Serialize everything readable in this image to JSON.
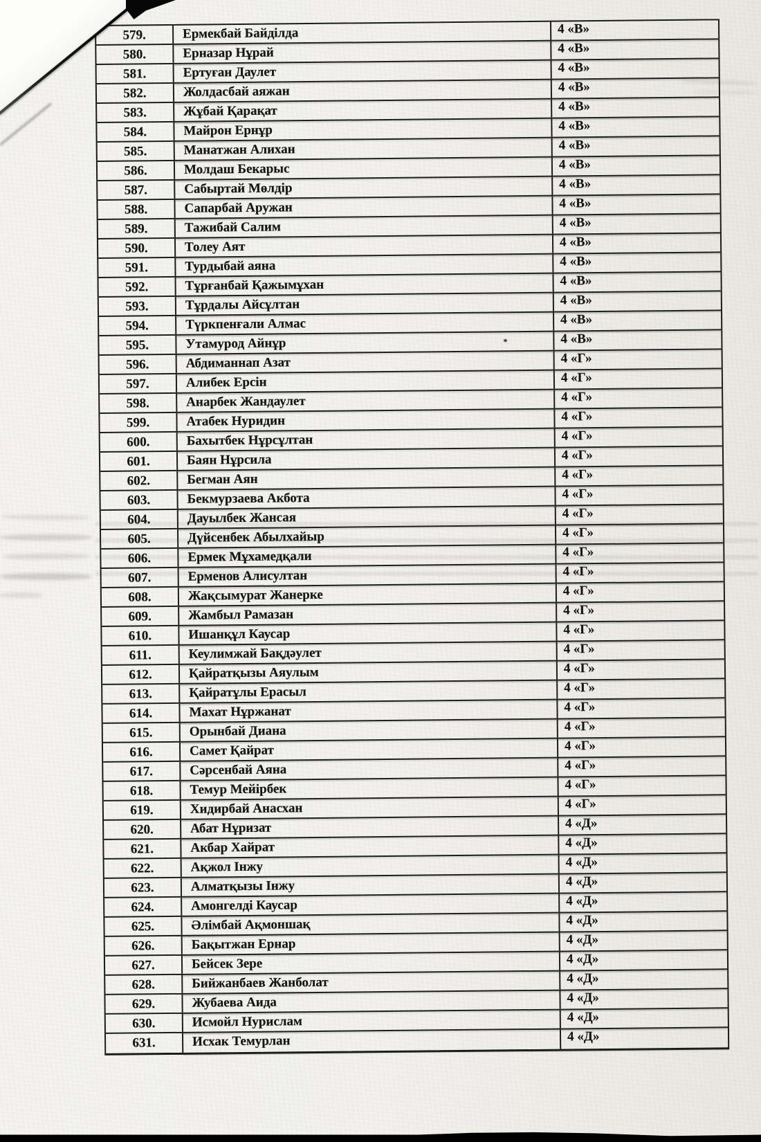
{
  "page": {
    "kind": "scanned-student-list",
    "paper_color": "#f1f0ec",
    "ink_color": "#161616"
  },
  "table": {
    "columns": [
      "number",
      "name",
      "class"
    ],
    "rows": [
      {
        "number": "579.",
        "name": "Ермекбай Байділда",
        "class": "4 «В»"
      },
      {
        "number": "580.",
        "name": "Ерназар Нұрай",
        "class": "4 «В»"
      },
      {
        "number": "581.",
        "name": "Ертуған Даулет",
        "class": "4 «В»"
      },
      {
        "number": "582.",
        "name": "Жолдасбай аяжан",
        "class": "4 «В»"
      },
      {
        "number": "583.",
        "name": "Жұбай Қарақат",
        "class": "4 «В»"
      },
      {
        "number": "584.",
        "name": "Майрон Ернұр",
        "class": "4 «В»"
      },
      {
        "number": "585.",
        "name": "Манатжан Алихан",
        "class": "4 «В»"
      },
      {
        "number": "586.",
        "name": "Молдаш Бекарыс",
        "class": "4 «В»"
      },
      {
        "number": "587.",
        "name": "Сабыртай Мөлдір",
        "class": "4 «В»"
      },
      {
        "number": "588.",
        "name": "Сапарбай Аружан",
        "class": "4 «В»"
      },
      {
        "number": "589.",
        "name": "Тажибай Салим",
        "class": "4 «В»"
      },
      {
        "number": "590.",
        "name": "Толеу Аят",
        "class": "4 «В»"
      },
      {
        "number": "591.",
        "name": "Турдыбай аяна",
        "class": "4 «В»"
      },
      {
        "number": "592.",
        "name": "Тұрғанбай Қажымұхан",
        "class": "4 «В»"
      },
      {
        "number": "593.",
        "name": "Тұрдалы Айсұлтан",
        "class": "4 «В»"
      },
      {
        "number": "594.",
        "name": "Түркпенғали Алмас",
        "class": "4 «В»"
      },
      {
        "number": "595.",
        "name": "Утамурод Айнұр",
        "class": "4 «В»"
      },
      {
        "number": "596.",
        "name": "Абдиманнап Азат",
        "class": "4 «Г»"
      },
      {
        "number": "597.",
        "name": "Алибек Ерсін",
        "class": "4 «Г»"
      },
      {
        "number": "598.",
        "name": "Анарбек Жандаулет",
        "class": "4 «Г»"
      },
      {
        "number": "599.",
        "name": "Атабек Нуридин",
        "class": "4 «Г»"
      },
      {
        "number": "600.",
        "name": "Бахытбек Нұрсұлтан",
        "class": "4 «Г»"
      },
      {
        "number": "601.",
        "name": "Баян Нұрсила",
        "class": "4 «Г»"
      },
      {
        "number": "602.",
        "name": "Бегман Аян",
        "class": "4 «Г»"
      },
      {
        "number": "603.",
        "name": "Бекмурзаева Акбота",
        "class": "4 «Г»"
      },
      {
        "number": "604.",
        "name": "Дауылбек Жансая",
        "class": "4 «Г»"
      },
      {
        "number": "605.",
        "name": "Дүйсенбек Абылхайыр",
        "class": "4 «Г»"
      },
      {
        "number": "606.",
        "name": "Ермек Мұхамедқали",
        "class": "4 «Г»"
      },
      {
        "number": "607.",
        "name": "Ерменов Алисултан",
        "class": "4 «Г»"
      },
      {
        "number": "608.",
        "name": "Жақсымурат Жанерке",
        "class": "4 «Г»"
      },
      {
        "number": "609.",
        "name": "Жамбыл Рамазан",
        "class": "4 «Г»"
      },
      {
        "number": "610.",
        "name": "Ишанқұл Каусар",
        "class": "4 «Г»"
      },
      {
        "number": "611.",
        "name": "Кеулимжай Бақдәулет",
        "class": "4 «Г»"
      },
      {
        "number": "612.",
        "name": "Қайратқызы Аяулым",
        "class": "4 «Г»"
      },
      {
        "number": "613.",
        "name": "Қайратұлы Ерасыл",
        "class": "4 «Г»"
      },
      {
        "number": "614.",
        "name": "Махат Нұржанат",
        "class": "4 «Г»"
      },
      {
        "number": "615.",
        "name": "Орынбай Диана",
        "class": "4 «Г»"
      },
      {
        "number": "616.",
        "name": "Самет Қайрат",
        "class": "4 «Г»"
      },
      {
        "number": "617.",
        "name": "Сәрсенбай Аяна",
        "class": "4 «Г»"
      },
      {
        "number": "618.",
        "name": "Темур Мейірбек",
        "class": "4 «Г»"
      },
      {
        "number": "619.",
        "name": "Хидирбай Анасхан",
        "class": "4 «Г»"
      },
      {
        "number": "620.",
        "name": "Абат Нұризат",
        "class": "4 «Д»"
      },
      {
        "number": "621.",
        "name": "Акбар Хайрат",
        "class": "4 «Д»"
      },
      {
        "number": "622.",
        "name": "Ақжол Інжу",
        "class": "4 «Д»"
      },
      {
        "number": "623.",
        "name": "Алматқызы Інжу",
        "class": "4 «Д»"
      },
      {
        "number": "624.",
        "name": "Амонгелді Каусар",
        "class": "4 «Д»"
      },
      {
        "number": "625.",
        "name": "Әлімбай Ақмоншақ",
        "class": "4 «Д»"
      },
      {
        "number": "626.",
        "name": "Бақытжан Ернар",
        "class": "4 «Д»"
      },
      {
        "number": "627.",
        "name": "Бейсек Зере",
        "class": "4 «Д»"
      },
      {
        "number": "628.",
        "name": "Бийжанбаев Жанболат",
        "class": "4 «Д»"
      },
      {
        "number": "629.",
        "name": "Жубаева Аида",
        "class": "4 «Д»"
      },
      {
        "number": "630.",
        "name": "Исмойл Нурислам",
        "class": "4 «Д»"
      },
      {
        "number": "631.",
        "name": "Исхак Темурлан",
        "class": "4 «Д»"
      }
    ]
  }
}
